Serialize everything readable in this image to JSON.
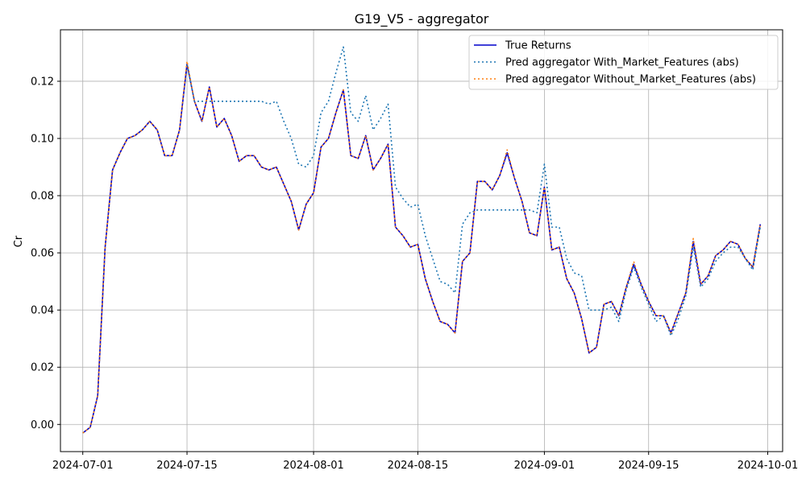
{
  "chart_data": {
    "type": "line",
    "title": "G19_V5 - aggregator",
    "xlabel": "",
    "ylabel": "Cr",
    "xlim": [
      "2024-06-28",
      "2024-10-03"
    ],
    "ylim": [
      -0.0095,
      0.138
    ],
    "grid": true,
    "legend_position": "top-right",
    "xticks": [
      "2024-07-01",
      "2024-07-15",
      "2024-08-01",
      "2024-08-15",
      "2024-09-01",
      "2024-09-15",
      "2024-10-01"
    ],
    "yticks": [
      "0.00",
      "0.02",
      "0.04",
      "0.06",
      "0.08",
      "0.10",
      "0.12"
    ],
    "dates": [
      "2024-07-01",
      "2024-07-02",
      "2024-07-03",
      "2024-07-04",
      "2024-07-05",
      "2024-07-06",
      "2024-07-07",
      "2024-07-08",
      "2024-07-09",
      "2024-07-10",
      "2024-07-11",
      "2024-07-12",
      "2024-07-13",
      "2024-07-14",
      "2024-07-15",
      "2024-07-16",
      "2024-07-17",
      "2024-07-18",
      "2024-07-19",
      "2024-07-20",
      "2024-07-21",
      "2024-07-22",
      "2024-07-23",
      "2024-07-24",
      "2024-07-25",
      "2024-07-26",
      "2024-07-27",
      "2024-07-28",
      "2024-07-29",
      "2024-07-30",
      "2024-07-31",
      "2024-08-01",
      "2024-08-02",
      "2024-08-03",
      "2024-08-04",
      "2024-08-05",
      "2024-08-06",
      "2024-08-07",
      "2024-08-08",
      "2024-08-09",
      "2024-08-10",
      "2024-08-11",
      "2024-08-12",
      "2024-08-13",
      "2024-08-14",
      "2024-08-15",
      "2024-08-16",
      "2024-08-17",
      "2024-08-18",
      "2024-08-19",
      "2024-08-20",
      "2024-08-21",
      "2024-08-22",
      "2024-08-23",
      "2024-08-24",
      "2024-08-25",
      "2024-08-26",
      "2024-08-27",
      "2024-08-28",
      "2024-08-29",
      "2024-08-30",
      "2024-08-31",
      "2024-09-01",
      "2024-09-02",
      "2024-09-03",
      "2024-09-04",
      "2024-09-05",
      "2024-09-06",
      "2024-09-07",
      "2024-09-08",
      "2024-09-09",
      "2024-09-10",
      "2024-09-11",
      "2024-09-12",
      "2024-09-13",
      "2024-09-14",
      "2024-09-15",
      "2024-09-16",
      "2024-09-17",
      "2024-09-18",
      "2024-09-19",
      "2024-09-20",
      "2024-09-21",
      "2024-09-22",
      "2024-09-23",
      "2024-09-24",
      "2024-09-25",
      "2024-09-26",
      "2024-09-27",
      "2024-09-28",
      "2024-09-29",
      "2024-09-30"
    ],
    "series": [
      {
        "name": "True Returns",
        "color": "#0000cc",
        "style": "solid",
        "values": [
          -0.003,
          -0.001,
          0.01,
          0.062,
          0.089,
          0.095,
          0.1,
          0.101,
          0.103,
          0.106,
          0.103,
          0.094,
          0.094,
          0.103,
          0.126,
          0.113,
          0.106,
          0.118,
          0.104,
          0.107,
          0.101,
          0.092,
          0.094,
          0.094,
          0.09,
          0.089,
          0.09,
          0.084,
          0.078,
          0.068,
          0.077,
          0.081,
          0.097,
          0.1,
          0.109,
          0.117,
          0.094,
          0.093,
          0.101,
          0.089,
          0.093,
          0.098,
          0.069,
          0.066,
          0.062,
          0.063,
          0.051,
          0.043,
          0.036,
          0.035,
          0.032,
          0.057,
          0.06,
          0.085,
          0.085,
          0.082,
          0.087,
          0.095,
          0.086,
          0.078,
          0.067,
          0.066,
          0.083,
          0.061,
          0.062,
          0.051,
          0.046,
          0.037,
          0.025,
          0.027,
          0.042,
          0.043,
          0.038,
          0.048,
          0.056,
          0.049,
          0.043,
          0.038,
          0.038,
          0.032,
          0.039,
          0.046,
          0.064,
          0.049,
          0.052,
          0.059,
          0.061,
          0.064,
          0.063,
          0.058,
          0.055,
          0.07
        ]
      },
      {
        "name": "Pred aggregator With_Market_Features (abs)",
        "color": "#1f77b4",
        "style": "dotted",
        "values": [
          -0.003,
          -0.001,
          0.01,
          0.062,
          0.089,
          0.095,
          0.1,
          0.101,
          0.103,
          0.106,
          0.103,
          0.094,
          0.094,
          0.103,
          0.126,
          0.113,
          0.113,
          0.113,
          0.113,
          0.113,
          0.113,
          0.113,
          0.113,
          0.113,
          0.113,
          0.112,
          0.113,
          0.106,
          0.1,
          0.091,
          0.09,
          0.094,
          0.109,
          0.113,
          0.123,
          0.132,
          0.109,
          0.106,
          0.115,
          0.103,
          0.107,
          0.112,
          0.083,
          0.079,
          0.076,
          0.077,
          0.066,
          0.058,
          0.05,
          0.049,
          0.046,
          0.07,
          0.074,
          0.075,
          0.075,
          0.075,
          0.075,
          0.075,
          0.075,
          0.075,
          0.075,
          0.074,
          0.091,
          0.069,
          0.069,
          0.058,
          0.053,
          0.052,
          0.04,
          0.04,
          0.04,
          0.041,
          0.036,
          0.047,
          0.055,
          0.048,
          0.042,
          0.036,
          0.038,
          0.031,
          0.037,
          0.045,
          0.062,
          0.048,
          0.051,
          0.057,
          0.06,
          0.062,
          0.062,
          0.058,
          0.054,
          0.069
        ]
      },
      {
        "name": "Pred aggregator Without_Market_Features (abs)",
        "color": "#ff7f0e",
        "style": "dotted",
        "values": [
          -0.003,
          -0.001,
          0.01,
          0.062,
          0.089,
          0.095,
          0.1,
          0.101,
          0.103,
          0.106,
          0.103,
          0.094,
          0.094,
          0.103,
          0.127,
          0.113,
          0.106,
          0.118,
          0.104,
          0.107,
          0.101,
          0.092,
          0.094,
          0.094,
          0.09,
          0.089,
          0.09,
          0.084,
          0.078,
          0.068,
          0.077,
          0.081,
          0.097,
          0.1,
          0.109,
          0.117,
          0.094,
          0.093,
          0.101,
          0.089,
          0.093,
          0.098,
          0.069,
          0.066,
          0.062,
          0.063,
          0.051,
          0.043,
          0.036,
          0.035,
          0.032,
          0.057,
          0.06,
          0.085,
          0.085,
          0.082,
          0.087,
          0.096,
          0.086,
          0.078,
          0.067,
          0.066,
          0.083,
          0.061,
          0.062,
          0.051,
          0.046,
          0.037,
          0.025,
          0.027,
          0.042,
          0.043,
          0.038,
          0.048,
          0.057,
          0.049,
          0.043,
          0.038,
          0.038,
          0.032,
          0.039,
          0.046,
          0.065,
          0.049,
          0.052,
          0.059,
          0.061,
          0.064,
          0.063,
          0.058,
          0.055,
          0.07
        ]
      }
    ]
  }
}
